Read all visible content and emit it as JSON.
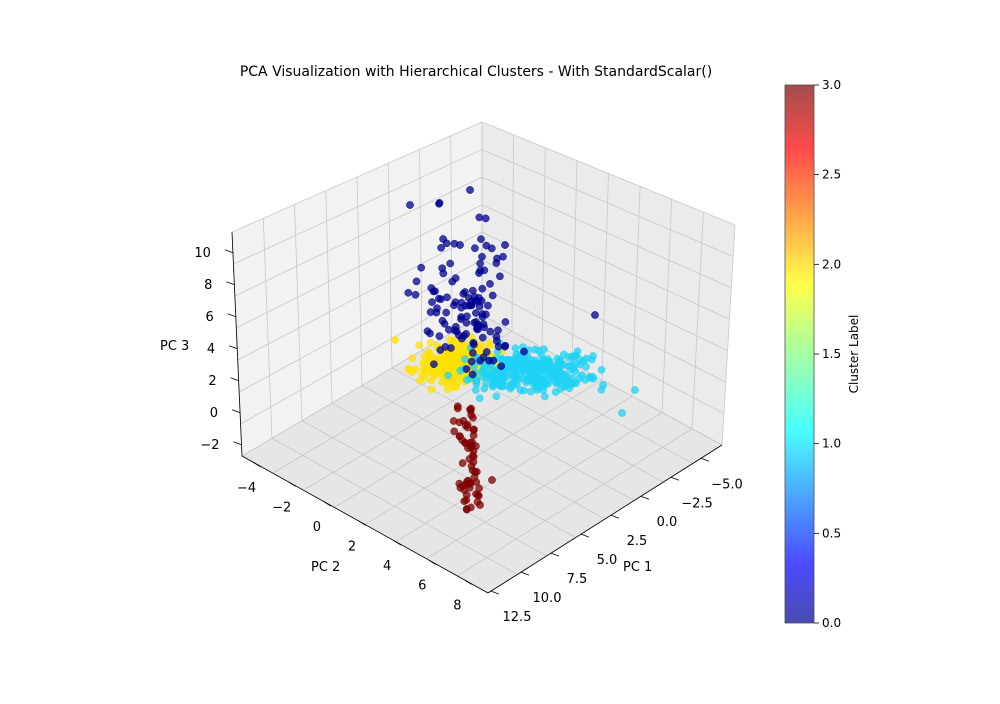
{
  "chart_data": {
    "type": "scatter",
    "title": "PCA Visualization with Hierarchical Clusters - With StandardScalar()",
    "xlabel": "PC 1",
    "ylabel": "PC 2",
    "zlabel": "PC 3",
    "x_ticks": [
      "−5.0",
      "−2.5",
      "0.0",
      "2.5",
      "5.0",
      "7.5",
      "10.0",
      "12.5"
    ],
    "y_ticks": [
      "−4",
      "−2",
      "0",
      "2",
      "4",
      "6",
      "8"
    ],
    "z_ticks": [
      "−2",
      "0",
      "2",
      "4",
      "6",
      "8",
      "10"
    ],
    "xlim": [
      -6,
      12.5
    ],
    "ylim": [
      -4.5,
      9
    ],
    "zlim": [
      -3,
      12
    ],
    "grid": true,
    "colorbar": {
      "label": "Cluster Label",
      "ticks": [
        "0.0",
        "0.5",
        "1.0",
        "1.5",
        "2.0",
        "2.5",
        "3.0"
      ],
      "range": [
        0,
        3
      ],
      "colormap": "jet"
    },
    "series": [
      {
        "cluster": 0,
        "color": "#00008f",
        "center_x": 1.5,
        "center_y": 1.5,
        "center_z": 5.5,
        "spread_z": [
          3,
          12
        ],
        "n_points_approx": 150
      },
      {
        "cluster": 1,
        "color": "#1fd2f5",
        "center_x": -1.5,
        "center_y": 3.0,
        "center_z": 2.0,
        "spread_x": [
          -6,
          4
        ],
        "n_points_approx": 600
      },
      {
        "cluster": 2,
        "color": "#ffe000",
        "center_x": 3.5,
        "center_y": -0.5,
        "center_z": 2.5,
        "n_points_approx": 400
      },
      {
        "cluster": 3,
        "color": "#7f0000",
        "center_x": 7.0,
        "center_y": 3.5,
        "center_z": -1.0,
        "spread_z": [
          -3,
          1
        ],
        "n_points_approx": 60
      }
    ]
  }
}
